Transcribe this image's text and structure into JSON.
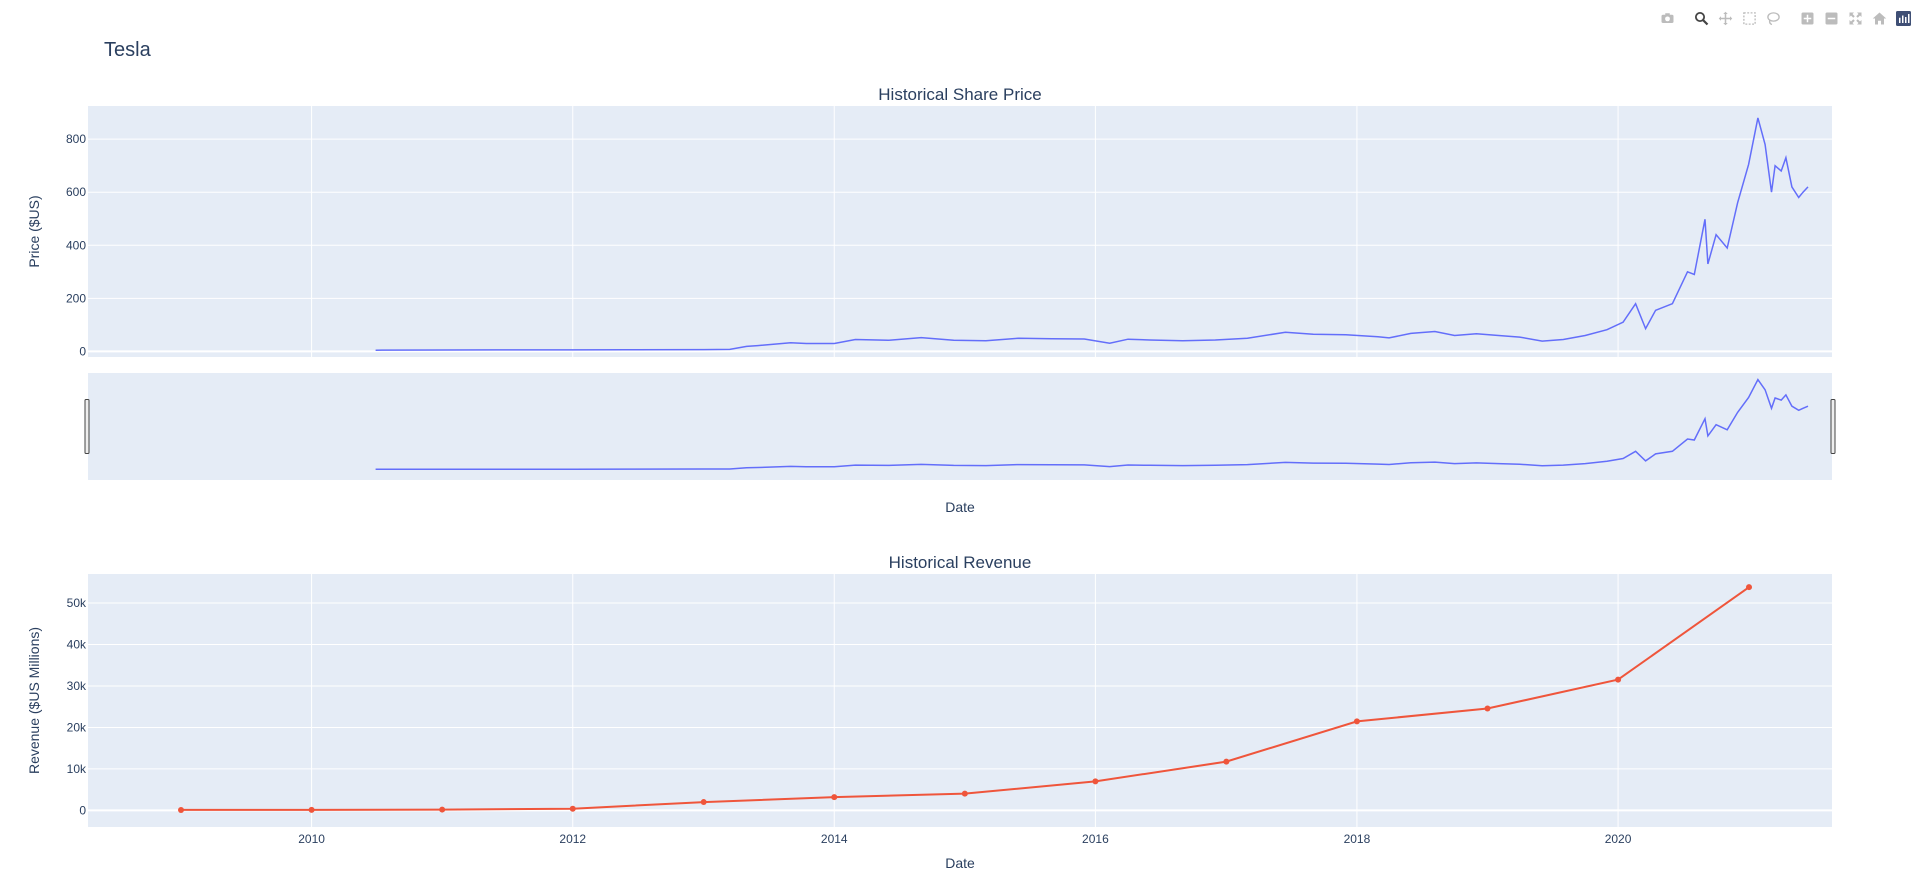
{
  "figure": {
    "title": "Tesla",
    "colors": {
      "plot_bg": "#e5ecf6",
      "grid": "#ffffff",
      "price_line": "#636efa",
      "revenue_line": "#ef553b",
      "text": "#2a3f5f",
      "modebar_icon": "#bcbcbc",
      "modebar_active": "#444444",
      "logo_bg": "#3f4f75"
    }
  },
  "modebar": {
    "buttons": [
      {
        "icon": "camera-icon",
        "label": "Download plot as a png"
      },
      {
        "icon": "zoom-icon",
        "label": "Zoom"
      },
      {
        "icon": "pan-icon",
        "label": "Pan"
      },
      {
        "icon": "box-select-icon",
        "label": "Box Select"
      },
      {
        "icon": "lasso-select-icon",
        "label": "Lasso Select"
      },
      {
        "icon": "zoom-in-icon",
        "label": "Zoom in"
      },
      {
        "icon": "zoom-out-icon",
        "label": "Zoom out"
      },
      {
        "icon": "autoscale-icon",
        "label": "Autoscale"
      },
      {
        "icon": "home-icon",
        "label": "Reset axes"
      },
      {
        "icon": "plotly-logo-icon",
        "label": "Produced with Plotly"
      }
    ]
  },
  "chart_data": [
    {
      "type": "line",
      "title": "Historical Share Price",
      "xlabel": "Date",
      "ylabel": "Price ($US)",
      "xlim": [
        "2008-04-16",
        "2021-08-21"
      ],
      "ylim": [
        -21,
        925
      ],
      "yticks": [
        0,
        200,
        400,
        600,
        800
      ],
      "ytick_labels": [
        "0",
        "200",
        "400",
        "600",
        "800"
      ],
      "grid": true,
      "rangeslider": true,
      "series": [
        {
          "x": [
            "2010-06-29",
            "2011-01-01",
            "2011-06-01",
            "2012-01-01",
            "2012-06-01",
            "2013-01-01",
            "2013-03-15",
            "2013-05-01",
            "2013-06-01",
            "2013-09-01",
            "2013-10-15",
            "2014-01-01",
            "2014-03-01",
            "2014-06-01",
            "2014-09-01",
            "2014-12-01",
            "2015-03-01",
            "2015-06-01",
            "2015-09-01",
            "2015-12-01",
            "2016-02-10",
            "2016-04-01",
            "2016-06-01",
            "2016-09-01",
            "2016-12-01",
            "2017-03-01",
            "2017-06-15",
            "2017-09-01",
            "2017-12-01",
            "2018-03-01",
            "2018-04-01",
            "2018-06-01",
            "2018-08-07",
            "2018-10-01",
            "2018-12-01",
            "2019-02-01",
            "2019-04-01",
            "2019-06-03",
            "2019-08-01",
            "2019-10-01",
            "2019-12-01",
            "2020-01-15",
            "2020-02-19",
            "2020-03-18",
            "2020-04-15",
            "2020-06-01",
            "2020-07-13",
            "2020-08-01",
            "2020-08-31",
            "2020-09-08",
            "2020-10-01",
            "2020-11-01",
            "2020-11-30",
            "2020-12-31",
            "2021-01-26",
            "2021-02-15",
            "2021-03-05",
            "2021-03-15",
            "2021-04-01",
            "2021-04-14",
            "2021-05-01",
            "2021-05-20",
            "2021-06-01",
            "2021-06-15"
          ],
          "y": [
            4.8,
            5.3,
            5.6,
            5.7,
            6.3,
            7.0,
            7.5,
            19,
            22,
            33,
            30,
            30,
            45,
            42,
            52,
            42,
            40,
            50,
            48,
            47,
            31,
            46,
            43,
            40,
            43,
            50,
            72,
            65,
            63,
            55,
            51,
            68,
            75,
            60,
            67,
            60,
            54,
            39,
            45,
            60,
            82,
            110,
            180,
            86,
            155,
            180,
            300,
            290,
            498,
            330,
            440,
            390,
            560,
            705,
            880,
            780,
            600,
            700,
            680,
            730,
            620,
            580,
            600,
            620
          ]
        }
      ]
    },
    {
      "type": "line",
      "title": "Historical Revenue",
      "xlabel": "Date",
      "ylabel": "Revenue ($US Millions)",
      "xlim": [
        "2008-04-16",
        "2021-08-21"
      ],
      "ylim": [
        -4000,
        57000
      ],
      "xticks": [
        "2010",
        "2012",
        "2014",
        "2016",
        "2018",
        "2020"
      ],
      "yticks": [
        0,
        10000,
        20000,
        30000,
        40000,
        50000
      ],
      "ytick_labels": [
        "0",
        "10k",
        "20k",
        "30k",
        "40k",
        "50k"
      ],
      "grid": true,
      "markers": true,
      "series": [
        {
          "x": [
            "2009-01-01",
            "2010-01-01",
            "2011-01-01",
            "2012-01-01",
            "2013-01-01",
            "2014-01-01",
            "2015-01-01",
            "2016-01-01",
            "2017-01-01",
            "2018-01-01",
            "2019-01-01",
            "2020-01-01",
            "2021-01-01"
          ],
          "y": [
            112,
            117,
            204,
            413,
            2013,
            3198,
            4046,
            7000,
            11759,
            21461,
            24578,
            31536,
            53823
          ]
        }
      ]
    }
  ]
}
